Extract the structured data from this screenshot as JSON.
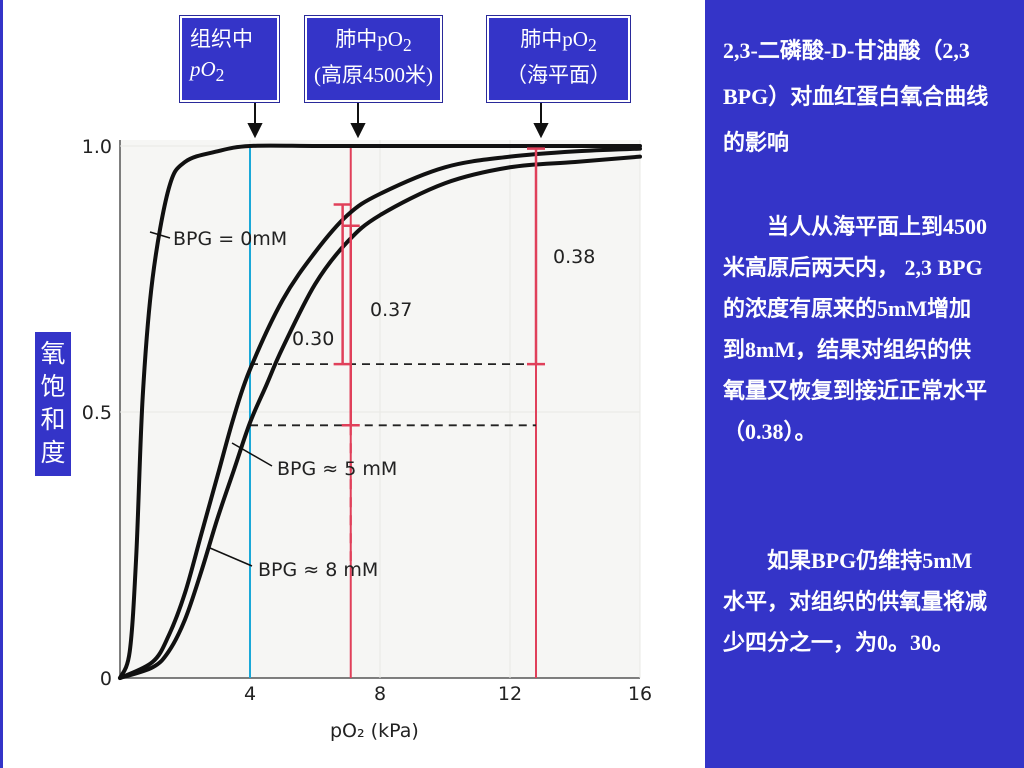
{
  "chart_data": {
    "type": "line",
    "xlabel": "pO₂ (kPa)",
    "xlim": [
      0,
      16
    ],
    "ylim": [
      0,
      1
    ],
    "x_ticks": [
      "4",
      "8",
      "12",
      "16"
    ],
    "y_ticks": [
      "0",
      "0.5",
      "1.0"
    ],
    "series": [
      {
        "name": "BPG = 0mM",
        "x": [
          0,
          0.3,
          0.5,
          0.7,
          1.0,
          1.5,
          2,
          3,
          4,
          6,
          8,
          12,
          16
        ],
        "y": [
          0,
          0.05,
          0.23,
          0.53,
          0.75,
          0.92,
          0.97,
          0.99,
          1.0,
          1.0,
          1.0,
          1.0,
          1.0
        ]
      },
      {
        "name": "BPG ≈ 5 mM",
        "x": [
          0,
          1,
          1.5,
          2,
          2.5,
          3,
          3.5,
          4,
          5,
          6,
          7,
          8,
          10,
          12,
          14,
          16
        ],
        "y": [
          0,
          0.03,
          0.08,
          0.16,
          0.27,
          0.38,
          0.49,
          0.58,
          0.71,
          0.8,
          0.87,
          0.91,
          0.96,
          0.98,
          0.99,
          0.995
        ]
      },
      {
        "name": "BPG ≈ 8 mM",
        "x": [
          0,
          1,
          1.5,
          2,
          2.5,
          3,
          3.5,
          4,
          4.5,
          5,
          6,
          7,
          8,
          10,
          12,
          14,
          16
        ],
        "y": [
          0,
          0.02,
          0.05,
          0.11,
          0.2,
          0.3,
          0.39,
          0.48,
          0.55,
          0.62,
          0.74,
          0.82,
          0.87,
          0.93,
          0.96,
          0.97,
          0.98
        ]
      }
    ],
    "reference_lines": [
      {
        "x": 4,
        "color": "#1aa8d8"
      },
      {
        "x": 7.1,
        "color": "#e0405a"
      },
      {
        "x": 12.8,
        "color": "#e0405a"
      }
    ],
    "annotations": [
      "0.30",
      "0.37",
      "0.38"
    ]
  },
  "labels": {
    "tissue_top": "组织中",
    "tissue_bottom": "pO",
    "tissue_sub": "2",
    "lung_high_top": "肺中pO",
    "lung_high_sub": "2",
    "lung_high_bottom": "(高原4500米)",
    "lung_sea_top": "肺中pO",
    "lung_sea_sub": "2",
    "lung_sea_bottom": "（海平面）",
    "y_axis_chars": [
      "氧",
      "饱",
      "和",
      "度"
    ]
  },
  "panel": {
    "title": "2,3-二磷酸-D-甘油酸（2,3 BPG）对血红蛋白氧合曲线的影响",
    "paragraph1": "当人从海平面上到4500米高原后两天内， 2,3 BPG的浓度有原来的5mM增加到8mM，结果对组织的供氧量又恢复到接近正常水平（0.38）。",
    "paragraph2": "如果BPG仍维持5mM水平，对组织的供氧量将减少四分之一，为0。30。"
  },
  "colors": {
    "panel": "#3434c8",
    "blue_line": "#1aa8d8",
    "red_line": "#e0405a",
    "curve": "#111111"
  }
}
